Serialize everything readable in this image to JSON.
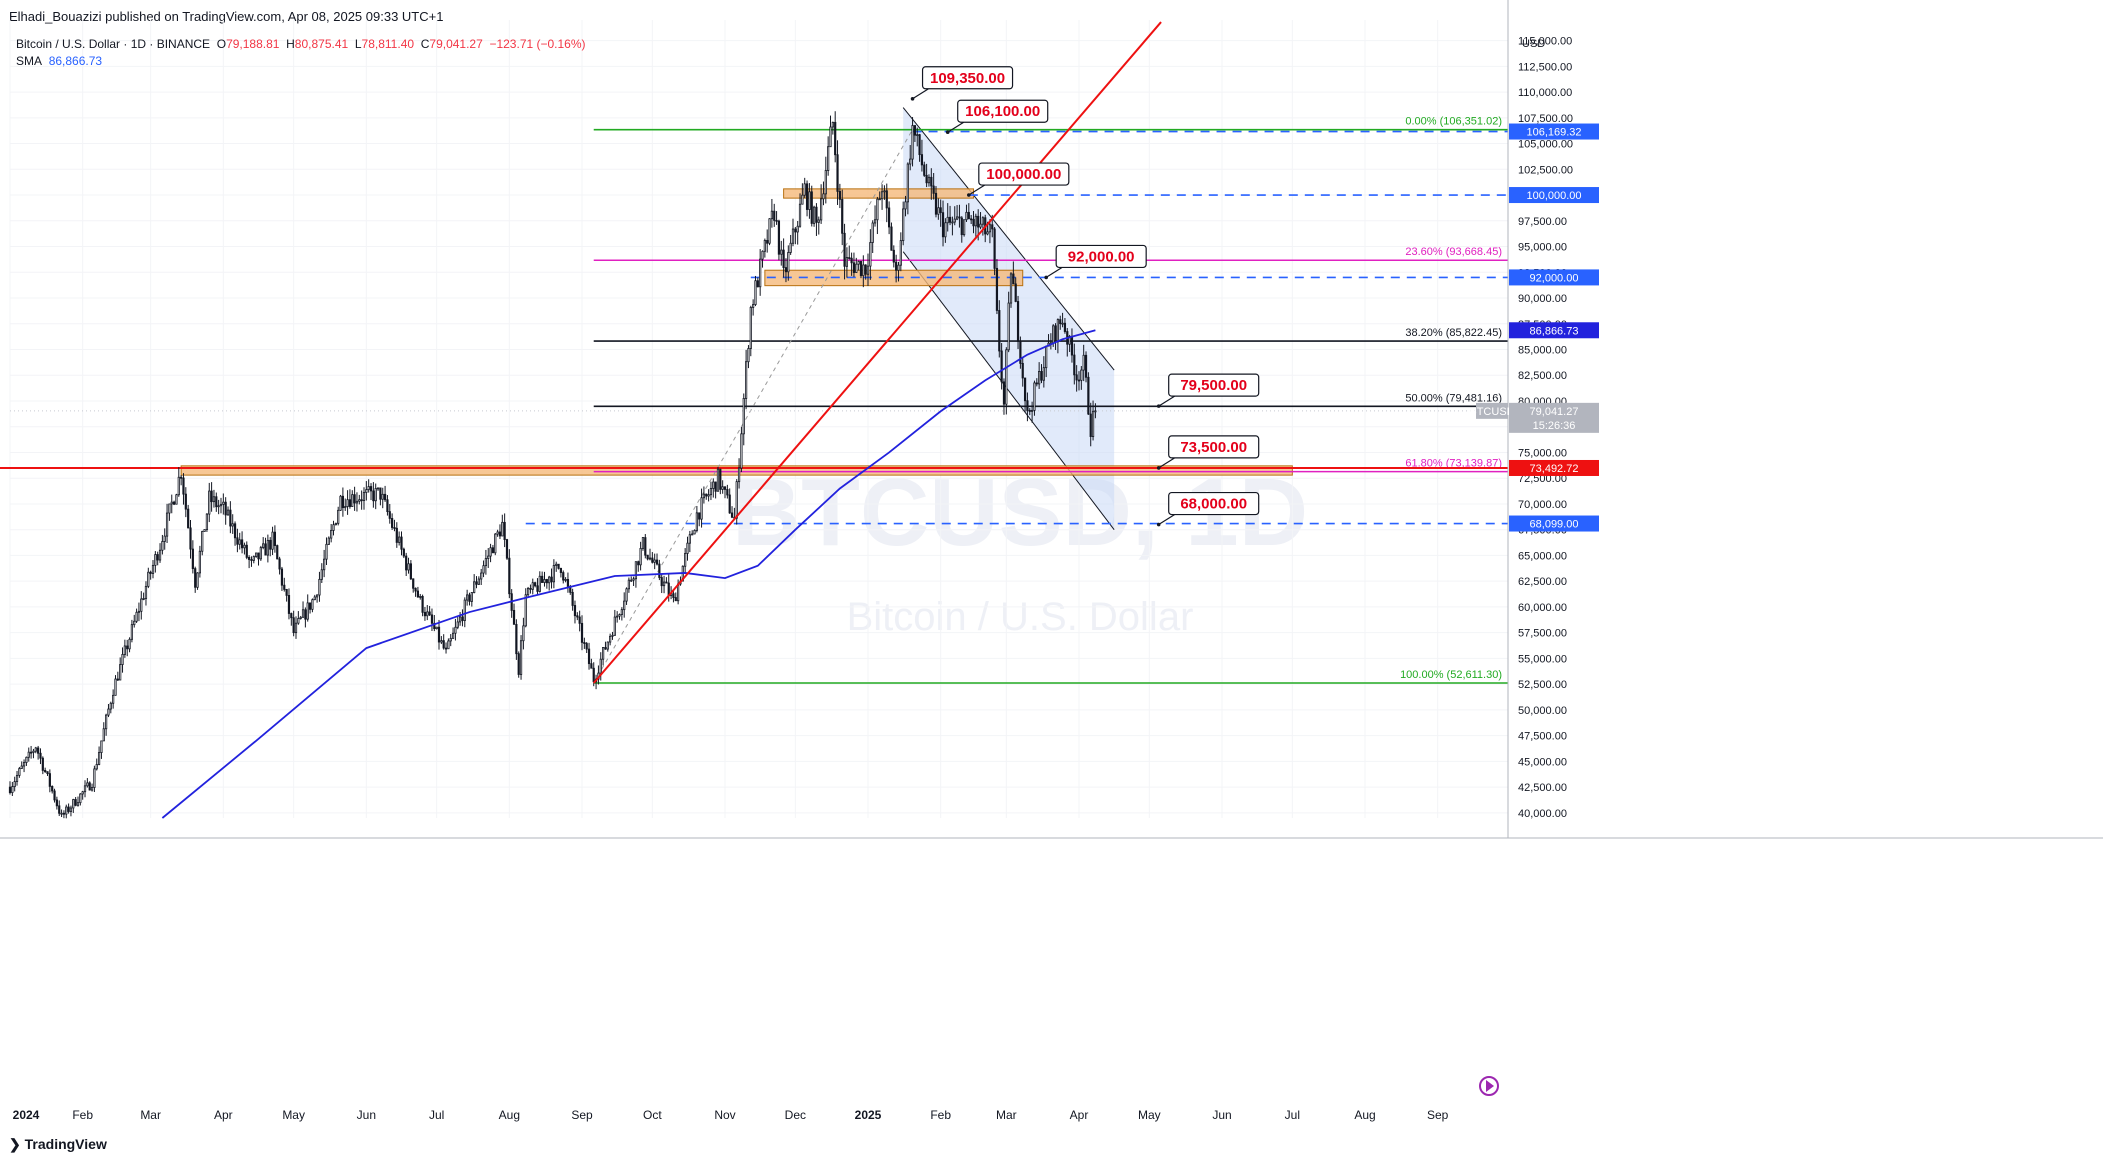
{
  "header": {
    "publisher_line": "Elhadi_Bouazizi published on TradingView.com, Apr 08, 2025 09:33 UTC+1"
  },
  "legend": {
    "symbol_line": "Bitcoin / U.S. Dollar · 1D · BINANCE",
    "o_label": "O",
    "o_value": "79,188.81",
    "h_label": "H",
    "h_value": "80,875.41",
    "l_label": "L",
    "l_value": "78,811.40",
    "c_label": "C",
    "c_value": "79,041.27",
    "change": "−123.71 (−0.16%)",
    "sma_label": "SMA",
    "sma_value": "86,866.73"
  },
  "watermark": {
    "symbol": "BTCUSD, 1D",
    "name": "Bitcoin / U.S. Dollar"
  },
  "footer": {
    "brand": "TradingView"
  },
  "colors": {
    "up": "#ffffff",
    "down": "#131722",
    "sma": "#2222dd",
    "trend": "#ee1111",
    "callout_text": "#e3001b",
    "fib_green": "#22aa22",
    "fib_magenta": "#e020c0",
    "dashed": "#2962ff",
    "zone": "#f5b97a",
    "channel": "#c9d9f5"
  },
  "chart_data": {
    "type": "candlestick",
    "currency_label": "USD",
    "y_ticks": [
      "40,000.00",
      "42,500.00",
      "45,000.00",
      "47,500.00",
      "50,000.00",
      "52,500.00",
      "55,000.00",
      "57,500.00",
      "60,000.00",
      "62,500.00",
      "65,000.00",
      "67,500.00",
      "70,000.00",
      "72,500.00",
      "75,000.00",
      "77,500.00",
      "80,000.00",
      "82,500.00",
      "85,000.00",
      "87,500.00",
      "90,000.00",
      "92,500.00",
      "95,000.00",
      "97,500.00",
      "100,000.00",
      "102,500.00",
      "105,000.00",
      "107,500.00",
      "110,000.00",
      "112,500.00",
      "115,000.00"
    ],
    "y_range": [
      39500,
      117000
    ],
    "x_ticks": [
      "2024",
      "Feb",
      "Mar",
      "Apr",
      "May",
      "Jun",
      "Jul",
      "Aug",
      "Sep",
      "Oct",
      "Nov",
      "Dec",
      "2025",
      "Feb",
      "Mar",
      "Apr",
      "May",
      "Jun",
      "Jul",
      "Aug",
      "Sep"
    ],
    "x_range": [
      "2024-01-01",
      "2025-10-01"
    ],
    "ohlc_anchors": [
      [
        "2024-01-01",
        42500
      ],
      [
        "2024-01-12",
        46500
      ],
      [
        "2024-01-23",
        39600
      ],
      [
        "2024-02-05",
        43000
      ],
      [
        "2024-02-14",
        52000
      ],
      [
        "2024-02-28",
        62000
      ],
      [
        "2024-03-05",
        66000
      ],
      [
        "2024-03-14",
        73200
      ],
      [
        "2024-03-20",
        62500
      ],
      [
        "2024-03-26",
        70500
      ],
      [
        "2024-04-01",
        69500
      ],
      [
        "2024-04-13",
        64000
      ],
      [
        "2024-04-22",
        66500
      ],
      [
        "2024-05-01",
        57500
      ],
      [
        "2024-05-10",
        61000
      ],
      [
        "2024-05-21",
        70500
      ],
      [
        "2024-06-07",
        71000
      ],
      [
        "2024-06-24",
        60500
      ],
      [
        "2024-07-05",
        55500
      ],
      [
        "2024-07-14",
        60500
      ],
      [
        "2024-07-29",
        68000
      ],
      [
        "2024-08-05",
        54000
      ],
      [
        "2024-08-08",
        61000
      ],
      [
        "2024-08-23",
        64000
      ],
      [
        "2024-09-06",
        53000
      ],
      [
        "2024-09-27",
        66000
      ],
      [
        "2024-10-10",
        60500
      ],
      [
        "2024-10-20",
        69000
      ],
      [
        "2024-10-29",
        72500
      ],
      [
        "2024-11-05",
        68500
      ],
      [
        "2024-11-12",
        89000
      ],
      [
        "2024-11-22",
        98500
      ],
      [
        "2024-11-26",
        92000
      ],
      [
        "2024-12-05",
        100500
      ],
      [
        "2024-12-10",
        97000
      ],
      [
        "2024-12-17",
        107000
      ],
      [
        "2024-12-22",
        93500
      ],
      [
        "2024-12-31",
        93000
      ],
      [
        "2025-01-07",
        101000
      ],
      [
        "2025-01-13",
        92000
      ],
      [
        "2025-01-20",
        106500
      ],
      [
        "2025-01-27",
        100500
      ],
      [
        "2025-02-02",
        97000
      ],
      [
        "2025-02-14",
        97500
      ],
      [
        "2025-02-23",
        96000
      ],
      [
        "2025-02-25",
        88000
      ],
      [
        "2025-02-28",
        79500
      ],
      [
        "2025-03-03",
        93000
      ],
      [
        "2025-03-10",
        78500
      ],
      [
        "2025-03-20",
        86000
      ],
      [
        "2025-03-25",
        88000
      ],
      [
        "2025-03-31",
        82500
      ],
      [
        "2025-04-03",
        83500
      ],
      [
        "2025-04-06",
        77500
      ],
      [
        "2025-04-08",
        79041
      ]
    ],
    "sma": {
      "name": "SMA",
      "values": [
        [
          "2024-03-06",
          39500
        ],
        [
          "2024-04-15",
          47000
        ],
        [
          "2024-06-01",
          56000
        ],
        [
          "2024-07-15",
          59500
        ],
        [
          "2024-08-10",
          61000
        ],
        [
          "2024-09-15",
          63000
        ],
        [
          "2024-10-15",
          63300
        ],
        [
          "2024-11-01",
          62800
        ],
        [
          "2024-11-15",
          64000
        ],
        [
          "2024-12-01",
          67500
        ],
        [
          "2024-12-20",
          71500
        ],
        [
          "2025-01-10",
          75000
        ],
        [
          "2025-02-01",
          79000
        ],
        [
          "2025-02-20",
          82000
        ],
        [
          "2025-03-10",
          84500
        ],
        [
          "2025-03-25",
          86000
        ],
        [
          "2025-04-08",
          86867
        ]
      ]
    },
    "current_price_tag": {
      "label": "BTCUSD",
      "value": "79,041.27",
      "countdown": "15:26:36"
    },
    "right_tags": [
      {
        "value": "106,169.32",
        "price": 106169
      },
      {
        "value": "100,000.00",
        "price": 100000
      },
      {
        "value": "92,000.00",
        "price": 92000
      },
      {
        "value": "86,866.73",
        "price": 86867
      },
      {
        "value": "73,492.72",
        "price": 73493
      },
      {
        "value": "68,099.00",
        "price": 68099
      }
    ],
    "fib_levels": [
      {
        "label": "0.00% (106,351.02)",
        "price": 106351,
        "color": "green"
      },
      {
        "label": "23.60% (93,668.45)",
        "price": 93668,
        "color": "magenta"
      },
      {
        "label": "38.20% (85,822.45)",
        "price": 85822,
        "color": "black"
      },
      {
        "label": "50.00% (79,481.16)",
        "price": 79481,
        "color": "black"
      },
      {
        "label": "61.80% (73,139.87)",
        "price": 73140,
        "color": "magenta"
      },
      {
        "label": "100.00% (52,611.30)",
        "price": 52611,
        "color": "green"
      }
    ],
    "callouts": [
      {
        "text": "109,350.00",
        "price": 109350,
        "date": "2025-01-20"
      },
      {
        "text": "106,100.00",
        "price": 106100,
        "date": "2025-02-04"
      },
      {
        "text": "100,000.00",
        "price": 100000,
        "date": "2025-02-13"
      },
      {
        "text": "92,000.00",
        "price": 92000,
        "date": "2025-03-18"
      },
      {
        "text": "79,500.00",
        "price": 79500,
        "date": "2025-05-05"
      },
      {
        "text": "73,500.00",
        "price": 73500,
        "date": "2025-05-05"
      },
      {
        "text": "68,000.00",
        "price": 68000,
        "date": "2025-05-05"
      }
    ],
    "horizontal_lines": [
      {
        "price": 106169,
        "style": "dashed",
        "from": "2025-01-20"
      },
      {
        "price": 100000,
        "style": "dashed",
        "from": "2025-02-13"
      },
      {
        "price": 92000,
        "style": "dashed",
        "from": "2024-11-12"
      },
      {
        "price": 68099,
        "style": "dashed",
        "from": "2024-08-08"
      },
      {
        "price": 73493,
        "style": "solid-red",
        "from": "2024-01-01"
      }
    ],
    "zones": [
      {
        "from": "2024-03-14",
        "to": "2025-07-01",
        "low": 72800,
        "high": 73700
      },
      {
        "from": "2024-11-26",
        "to": "2025-02-15",
        "low": 99700,
        "high": 100600
      },
      {
        "from": "2024-11-18",
        "to": "2025-03-08",
        "low": 91200,
        "high": 92700
      }
    ],
    "trendline": {
      "start": [
        "2024-09-06",
        52611
      ],
      "end": [
        "2025-05-06",
        116800
      ]
    },
    "fib_anchor_line": {
      "start": [
        "2024-09-06",
        52611
      ],
      "end": [
        "2025-01-20",
        106351
      ]
    },
    "channel": {
      "upper": [
        [
          "2025-01-16",
          108500
        ],
        [
          "2025-04-16",
          83000
        ]
      ],
      "lower": [
        [
          "2025-01-16",
          94500
        ],
        [
          "2025-04-16",
          67500
        ]
      ]
    }
  }
}
